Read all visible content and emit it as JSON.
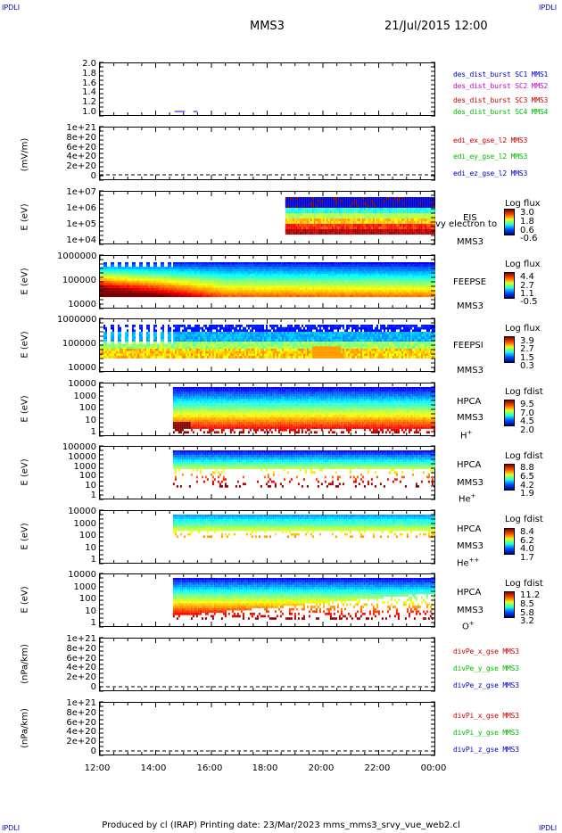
{
  "corners": {
    "tl": "IPDLI",
    "tr": "IPDLI",
    "bl": "IPDLI",
    "br": "IPDLI"
  },
  "header": {
    "spacecraft": "MMS3",
    "datetime": "21/Jul/2015 12:00"
  },
  "footer": "Produced by cl (IRAP)   Printing date: 23/Mar/2023   mms_mms3_srvy_vue_web2.cl",
  "chart_data": [
    {
      "type": "line",
      "panel": "des-dist-burst",
      "ylabel": "",
      "yticks": [
        "2.0",
        "1.8",
        "1.6",
        "1.4",
        "1.2",
        "1.0"
      ],
      "ylim": [
        0.9,
        2.1
      ],
      "series": [
        {
          "name": "des_dist_burst SC1 MMS1",
          "color": "#0000cc",
          "segments": [
            [
              14.68,
              15.05,
              1.0
            ],
            [
              15.35,
              15.5,
              1.0
            ]
          ]
        },
        {
          "name": "des_dist_burst SC2 MMS2",
          "color": "#cc00cc",
          "segments": []
        },
        {
          "name": "des_dist_burst SC3 MMS3",
          "color": "#cc0000",
          "segments": []
        },
        {
          "name": "des_dist_burst SC4 MMS4",
          "color": "#00bb00",
          "segments": []
        }
      ]
    },
    {
      "type": "line",
      "panel": "edi-electric-field",
      "ylabel": "(mV/m)",
      "yticks": [
        "1e+21",
        "8e+20",
        "6e+20",
        "4e+20",
        "2e+20",
        "0"
      ],
      "ylim": [
        0,
        1e+21
      ],
      "series": [
        {
          "name": "edi_ex_gse_l2 MMS3",
          "color": "#cc0000"
        },
        {
          "name": "edi_ey_gse_l2 MMS3",
          "color": "#00bb00"
        },
        {
          "name": "edi_ez_gse_l2 MMS3",
          "color": "#0000cc"
        }
      ]
    },
    {
      "type": "heatmap",
      "panel": "eis",
      "ylabel": "E (eV)",
      "yticks": [
        "1e+07",
        "1e+06",
        "1e+05",
        "1e+04"
      ],
      "side_label": "EIS",
      "species": "MMS3",
      "overlay_text": "vy electron to",
      "colorbar": {
        "title": "Log flux",
        "values": [
          "3.0",
          "1.8",
          "0.6",
          "-0.6"
        ]
      }
    },
    {
      "type": "heatmap",
      "panel": "feeps-electron",
      "ylabel": "E (eV)",
      "yticks": [
        "1000000",
        "100000",
        "10000"
      ],
      "side_label": "FEEPSE",
      "species": "MMS3",
      "colorbar": {
        "title": "Log flux",
        "values": [
          "4.4",
          "2.7",
          "1.1",
          "-0.5"
        ]
      }
    },
    {
      "type": "heatmap",
      "panel": "feeps-ion",
      "ylabel": "E (eV)",
      "yticks": [
        "1000000",
        "100000",
        "10000"
      ],
      "side_label": "FEEPSI",
      "species": "MMS3",
      "colorbar": {
        "title": "Log flux",
        "values": [
          "3.9",
          "2.7",
          "1.5",
          "0.3"
        ]
      }
    },
    {
      "type": "heatmap",
      "panel": "hpca-h",
      "ylabel": "E (eV)",
      "yticks": [
        "10000",
        "1000",
        "100",
        "10",
        "1"
      ],
      "side_label": "HPCA",
      "species": "MMS3",
      "ion": "H",
      "ion_sup": "+",
      "colorbar": {
        "title": "Log fdist",
        "values": [
          "9.5",
          "7.0",
          "4.5",
          "2.0"
        ]
      }
    },
    {
      "type": "heatmap",
      "panel": "hpca-he1",
      "ylabel": "E (eV)",
      "yticks": [
        "100000",
        "10000",
        "1000",
        "100",
        "10",
        "1"
      ],
      "side_label": "HPCA",
      "species": "MMS3",
      "ion": "He",
      "ion_sup": "+",
      "colorbar": {
        "title": "Log fdist",
        "values": [
          "8.8",
          "6.5",
          "4.2",
          "1.9"
        ]
      }
    },
    {
      "type": "heatmap",
      "panel": "hpca-he2",
      "ylabel": "E (eV)",
      "yticks": [
        "10000",
        "1000",
        "100",
        "10",
        "1"
      ],
      "side_label": "HPCA",
      "species": "MMS3",
      "ion": "He",
      "ion_sup": "++",
      "colorbar": {
        "title": "Log fdist",
        "values": [
          "8.4",
          "6.2",
          "4.0",
          "1.7"
        ]
      }
    },
    {
      "type": "heatmap",
      "panel": "hpca-o",
      "ylabel": "E (eV)",
      "yticks": [
        "10000",
        "1000",
        "100",
        "10",
        "1"
      ],
      "side_label": "HPCA",
      "species": "MMS3",
      "ion": "O",
      "ion_sup": "+",
      "colorbar": {
        "title": "Log fdist",
        "values": [
          "11.2",
          "8.5",
          "5.8",
          "3.2"
        ]
      }
    },
    {
      "type": "line",
      "panel": "divpe",
      "ylabel": "(nPa/km)",
      "yticks": [
        "1e+21",
        "8e+20",
        "6e+20",
        "4e+20",
        "2e+20",
        "0"
      ],
      "ylim": [
        0,
        1e+21
      ],
      "series": [
        {
          "name": "divPe_x_gse MMS3",
          "color": "#cc0000"
        },
        {
          "name": "divPe_y_gse MMS3",
          "color": "#00bb00"
        },
        {
          "name": "divPe_z_gse MMS3",
          "color": "#0000cc"
        }
      ]
    },
    {
      "type": "line",
      "panel": "divpi",
      "ylabel": "(nPa/km)",
      "yticks": [
        "1e+21",
        "8e+20",
        "6e+20",
        "4e+20",
        "2e+20",
        "0"
      ],
      "ylim": [
        0,
        1e+21
      ],
      "series": [
        {
          "name": "divPi_x_gse MMS3",
          "color": "#cc0000"
        },
        {
          "name": "divPi_y_gse MMS3",
          "color": "#00bb00"
        },
        {
          "name": "divPi_z_gse MMS3",
          "color": "#0000cc"
        }
      ]
    }
  ],
  "xaxis": {
    "ticks": [
      "12:00",
      "14:00",
      "16:00",
      "18:00",
      "20:00",
      "22:00",
      "00:00"
    ],
    "xlim": [
      12,
      24
    ]
  }
}
